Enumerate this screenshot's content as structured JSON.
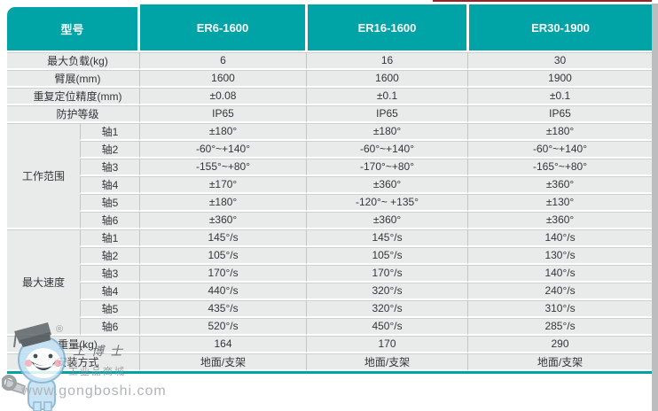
{
  "colors": {
    "accent_teal": "#00a4a7",
    "row_gray": "#e9ebeb",
    "divider_gray": "#c3c6c6",
    "top_line_red": "#93262a",
    "mascot_blue": "#bfe0f4"
  },
  "header": {
    "model_label": "型号",
    "models": [
      "ER6-1600",
      "ER16-1600",
      "ER30-1900"
    ]
  },
  "specs": {
    "rows_top": [
      {
        "label": "最大负载(kg)",
        "values": [
          "6",
          "16",
          "30"
        ]
      },
      {
        "label": "臂展(mm)",
        "values": [
          "1600",
          "1600",
          "1900"
        ]
      },
      {
        "label": "重复定位精度(mm)",
        "values": [
          "±0.08",
          "±0.1",
          "±0.1"
        ]
      },
      {
        "label": "防护等级",
        "values": [
          "IP65",
          "IP65",
          "IP65"
        ]
      }
    ],
    "groups": [
      {
        "label": "工作范围",
        "rows": [
          {
            "label": "轴1",
            "values": [
              "±180°",
              "±180°",
              "±180°"
            ]
          },
          {
            "label": "轴2",
            "values": [
              "-60°~+140°",
              "-60°~+140°",
              "-60°~+140°"
            ]
          },
          {
            "label": "轴3",
            "values": [
              "-155°~+80°",
              "-170°~+80°",
              "-165°~+80°"
            ]
          },
          {
            "label": "轴4",
            "values": [
              "±170°",
              "±360°",
              "±360°"
            ]
          },
          {
            "label": "轴5",
            "values": [
              "±180°",
              "-120°~ +135°",
              "±130°"
            ]
          },
          {
            "label": "轴6",
            "values": [
              "±360°",
              "±360°",
              "±360°"
            ]
          }
        ]
      },
      {
        "label": "最大速度",
        "rows": [
          {
            "label": "轴1",
            "values": [
              "145°/s",
              "145°/s",
              "140°/s"
            ]
          },
          {
            "label": "轴2",
            "values": [
              "105°/s",
              "105°/s",
              "130°/s"
            ]
          },
          {
            "label": "轴3",
            "values": [
              "170°/s",
              "170°/s",
              "140°/s"
            ]
          },
          {
            "label": "轴4",
            "values": [
              "440°/s",
              "320°/s",
              "240°/s"
            ]
          },
          {
            "label": "轴5",
            "values": [
              "435°/s",
              "320°/s",
              "310°/s"
            ]
          },
          {
            "label": "轴6",
            "values": [
              "520°/s",
              "450°/s",
              "285°/s"
            ]
          }
        ]
      }
    ],
    "rows_bottom": [
      {
        "label": "重量(kg)",
        "values": [
          "164",
          "170",
          "290"
        ]
      },
      {
        "label": "安装方式",
        "values": [
          "地面/支架",
          "地面/支架",
          "地面/支架"
        ]
      }
    ]
  },
  "watermark": {
    "brand": "工博士",
    "registered": "®",
    "tagline": "工业品商城",
    "url": "www.gongboshi.com"
  }
}
